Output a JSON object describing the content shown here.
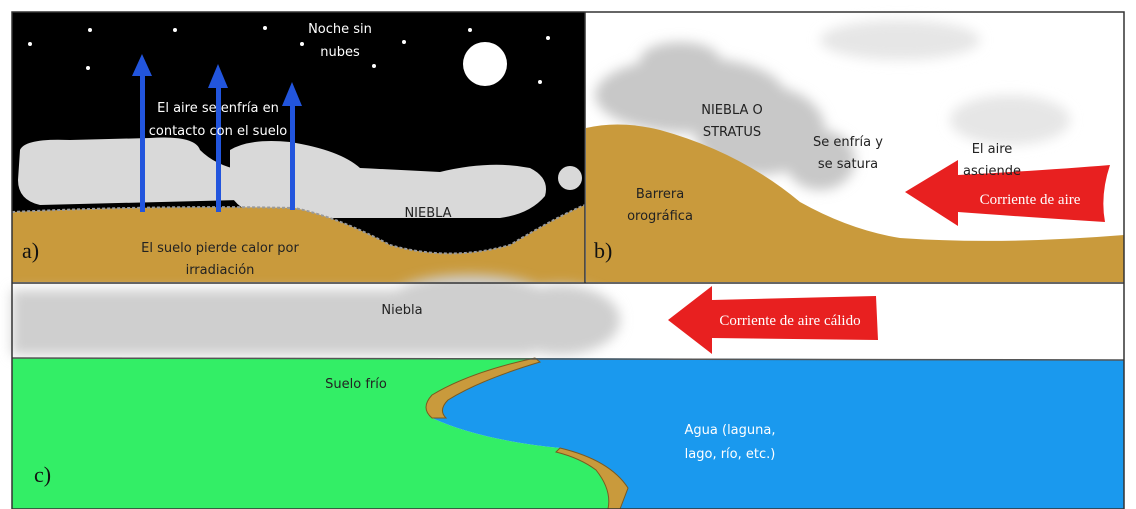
{
  "panel_a": {
    "label": "a)",
    "sky_text": [
      "Noche sin",
      "nubes"
    ],
    "air_text": [
      "El aire se enfría en",
      "contacto con el suelo"
    ],
    "fog_text": "NIEBLA",
    "ground_text": [
      "El suelo pierde calor por",
      "irradiación"
    ]
  },
  "panel_b": {
    "label": "b)",
    "fog_text": [
      "NIEBLA O",
      "STRATUS"
    ],
    "cool_text": [
      "Se enfría y",
      "se satura"
    ],
    "rise_text": [
      "El aire",
      "asciende"
    ],
    "barrier_text": [
      "Barrera",
      "orográfica"
    ],
    "arrow_text": "Corriente de aire"
  },
  "panel_c": {
    "label": "c)",
    "fog_text": "Niebla",
    "arrow_text": "Corriente de aire cálido",
    "ground_text": "Suelo frío",
    "water_text": [
      "Agua (laguna,",
      "lago, río, etc.)"
    ]
  },
  "colors": {
    "night_sky": "#000000",
    "fog": "#d9d9d9",
    "ground": "#c99a3c",
    "cold_ground": "#33ee66",
    "water": "#1a99ee",
    "arrow_red": "#e82020",
    "arrow_blue": "#2255dd"
  }
}
